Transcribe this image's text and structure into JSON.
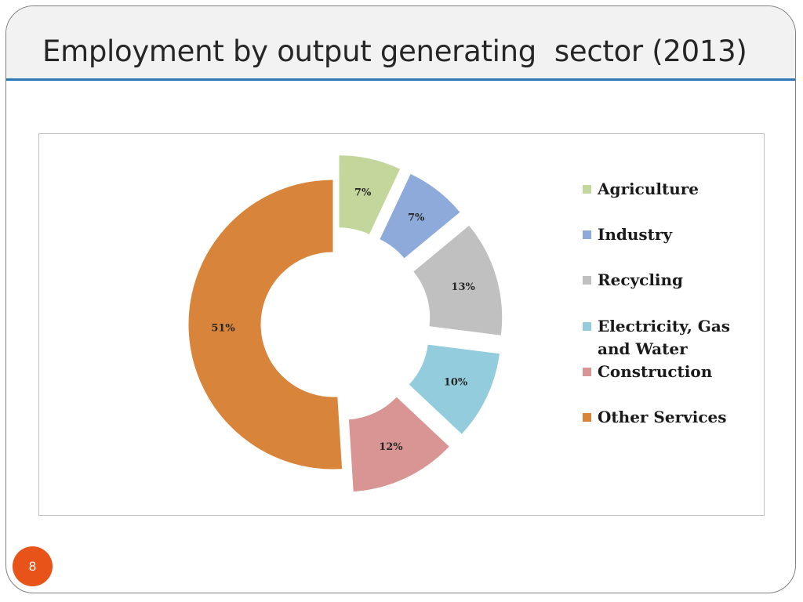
{
  "slide": {
    "title": "Employment by output generating  sector (2013)",
    "page_number": "8"
  },
  "chart_data": {
    "type": "pie",
    "variant": "exploded-doughnut",
    "categories": [
      "Agriculture",
      "Industry",
      "Recycling",
      "Electricity, Gas and Water",
      "Construction",
      "Other Services"
    ],
    "values": [
      7,
      7,
      13,
      10,
      12,
      51
    ],
    "value_labels": [
      "7%",
      "7%",
      "13%",
      "10%",
      "12%",
      "51%"
    ],
    "colors": [
      "#c3d69b",
      "#8eaadb",
      "#c0c0c0",
      "#93cddd",
      "#d99594",
      "#d9843b"
    ],
    "legend_position": "right",
    "title": ""
  },
  "colors": {
    "title_rule": "#2e75b6",
    "page_badge": "#e8531a"
  }
}
